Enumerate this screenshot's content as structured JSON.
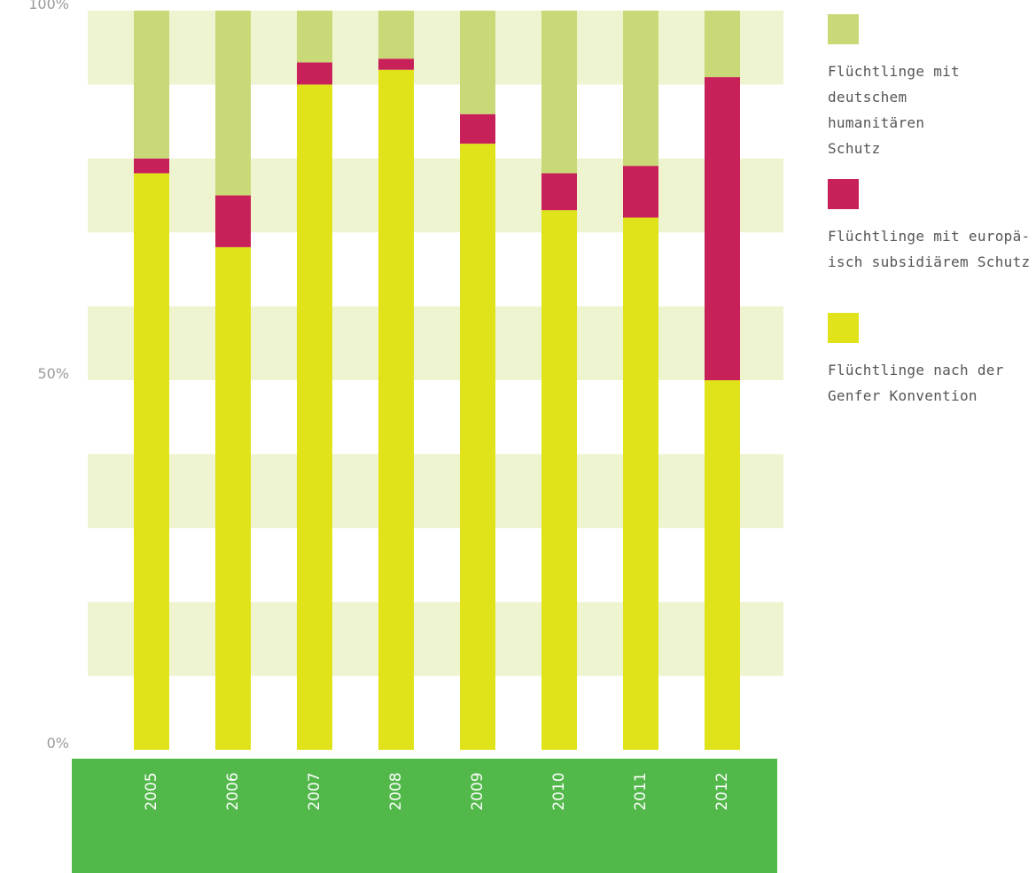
{
  "chart_data": {
    "type": "bar",
    "stacked": true,
    "title": "",
    "xlabel": "",
    "ylabel": "",
    "ylim": [
      0,
      100
    ],
    "yticks": [
      "0%",
      "50%",
      "100%"
    ],
    "categories": [
      "2005",
      "2006",
      "2007",
      "2008",
      "2009",
      "2010",
      "2011",
      "2012"
    ],
    "series": [
      {
        "name": "Flüchtlinge nach der Genfer Konvention",
        "color": "#e0e31a",
        "values": [
          78,
          68,
          90,
          92,
          82,
          73,
          72,
          50
        ]
      },
      {
        "name": "Flüchtlinge mit europä-isch subsidiärem Schutz",
        "color": "#c8215a",
        "values": [
          2,
          7,
          3,
          1.5,
          4,
          5,
          7,
          41
        ]
      },
      {
        "name": "Flüchtlinge mit deutschem humanitären Schutz",
        "color": "#cad977",
        "values": [
          20,
          25,
          7,
          6.5,
          14,
          22,
          21,
          9
        ]
      }
    ],
    "band_color": "#eef3d0",
    "axis_band_color": "#52b84a",
    "grid": false,
    "legend_position": "right"
  },
  "legend": [
    {
      "label": "Flüchtlinge mit deutschem humanitären Schutz",
      "color": "#cad977"
    },
    {
      "label": "Flüchtlinge mit europä-isch subsidiärem Schutz",
      "color": "#c8215a"
    },
    {
      "label": "Flüchtlinge nach der Genfer Konvention",
      "color": "#e0e31a"
    }
  ]
}
